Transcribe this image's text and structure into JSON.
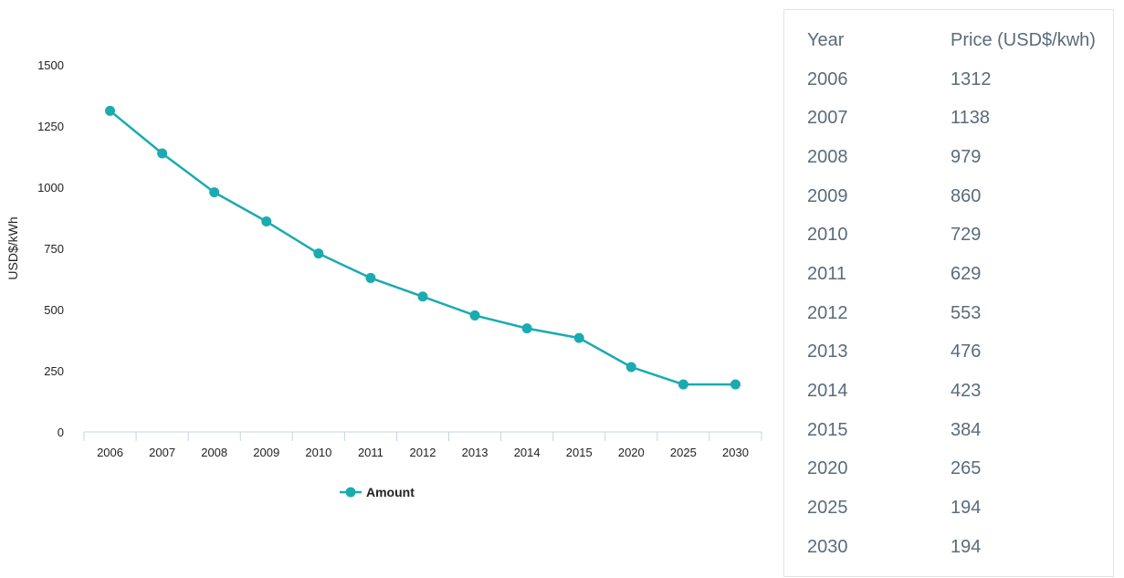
{
  "chart_data": {
    "type": "line",
    "categories": [
      "2006",
      "2007",
      "2008",
      "2009",
      "2010",
      "2011",
      "2012",
      "2013",
      "2014",
      "2015",
      "2020",
      "2025",
      "2030"
    ],
    "series": [
      {
        "name": "Amount",
        "values": [
          1312,
          1138,
          979,
          860,
          729,
          629,
          553,
          476,
          423,
          384,
          265,
          194,
          194
        ]
      }
    ],
    "ylabel": "USD$/kWh",
    "xlabel": "",
    "ylim": [
      0,
      1500
    ],
    "yticks": [
      0,
      250,
      500,
      750,
      1000,
      1250,
      1500
    ],
    "grid": false,
    "legend": "bottom-center",
    "colors": {
      "series": "#1aabb0",
      "axis": "#c6d3df",
      "text": "#222222"
    }
  },
  "table": {
    "headers": [
      "Year",
      "Price (USD$/kwh)"
    ],
    "rows": [
      [
        "2006",
        "1312"
      ],
      [
        "2007",
        "1138"
      ],
      [
        "2008",
        "979"
      ],
      [
        "2009",
        "860"
      ],
      [
        "2010",
        "729"
      ],
      [
        "2011",
        "629"
      ],
      [
        "2012",
        "553"
      ],
      [
        "2013",
        "476"
      ],
      [
        "2014",
        "423"
      ],
      [
        "2015",
        "384"
      ],
      [
        "2020",
        "265"
      ],
      [
        "2025",
        "194"
      ],
      [
        "2030",
        "194"
      ]
    ]
  }
}
